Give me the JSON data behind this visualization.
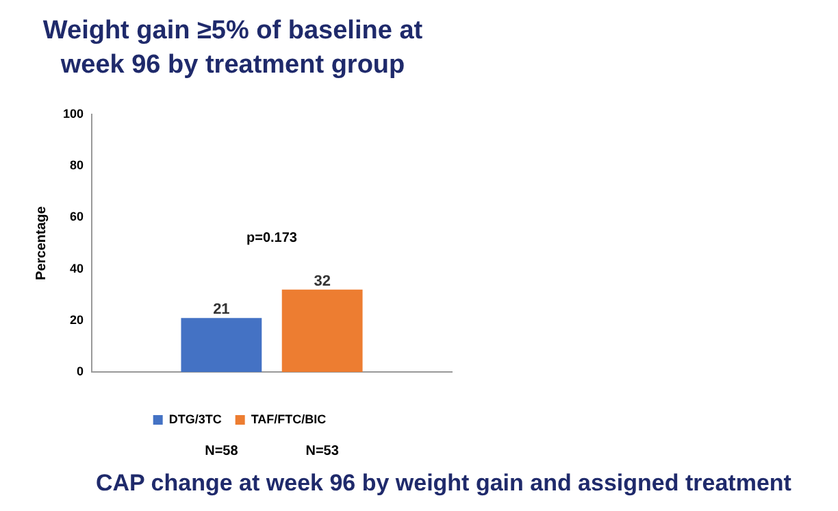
{
  "chart_data": {
    "type": "bar",
    "title": "Weight gain ≥5% of baseline at week 96 by treatment group",
    "ylabel": "Percentage",
    "categories": [
      null
    ],
    "series": [
      {
        "name": "DTG/3TC",
        "color": "#4472c4",
        "values": [
          21
        ]
      },
      {
        "name": "TAF/FTC/BIC",
        "color": "#ed7d31",
        "values": [
          32
        ]
      }
    ],
    "ylim": [
      0,
      100
    ],
    "yticks": [
      0,
      20,
      40,
      60,
      80,
      100
    ],
    "grid": false,
    "legend": "bottom",
    "data_labels": true,
    "annotations": [
      "p=0.173",
      "N=58",
      "N=53",
      "CAP change at week 96 by weight gain and assigned treatment"
    ]
  }
}
